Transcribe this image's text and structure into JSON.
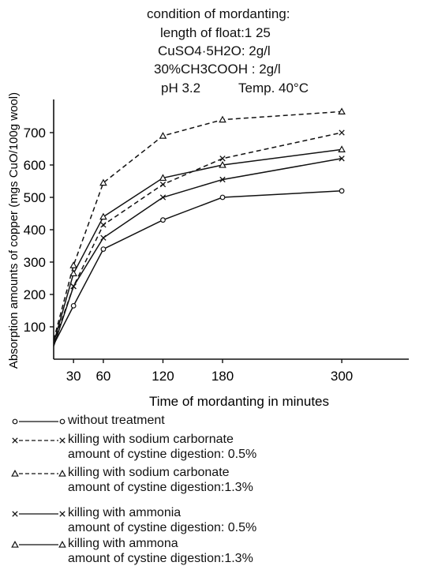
{
  "header": {
    "title": "condition of mordanting:",
    "line1": "length of float:1 25",
    "line2": "CuSO4·5H2O: 2g/l",
    "line3": "30%CH3COOH : 2g/l",
    "line4_ph": "pH  3.2",
    "line4_temp": "Temp. 40°C"
  },
  "chart_data": {
    "type": "line",
    "xlabel": "Time of mordanting in minutes",
    "ylabel": "Absorption amounts of copper (mgs CuO/100g wool)",
    "x_ticks": [
      30,
      60,
      120,
      180,
      300
    ],
    "y_ticks": [
      100,
      200,
      300,
      400,
      500,
      600,
      700
    ],
    "xlim": [
      0,
      330
    ],
    "ylim": [
      0,
      800
    ],
    "grid": false,
    "legend_position": "bottom",
    "series": [
      {
        "key": "s1",
        "name": "without treatment",
        "marker": "o",
        "line": "solid",
        "x": [
          10,
          30,
          60,
          120,
          180,
          300
        ],
        "y": [
          45,
          165,
          340,
          430,
          500,
          520
        ]
      },
      {
        "key": "s2",
        "name": "killing with sodium carbornate",
        "subname": "amount of cystine digestion: 0.5%",
        "marker": "x",
        "line": "dashed",
        "x": [
          10,
          30,
          60,
          120,
          180,
          300
        ],
        "y": [
          50,
          225,
          415,
          540,
          620,
          700
        ]
      },
      {
        "key": "s3",
        "name": "killing with sodium carbonate",
        "subname": "amount of cystine digestion:1.3%",
        "marker": "triangle",
        "line": "dashed",
        "x": [
          10,
          30,
          60,
          120,
          180,
          300
        ],
        "y": [
          60,
          290,
          545,
          690,
          740,
          765
        ]
      },
      {
        "key": "s4",
        "name": "killing with ammonia",
        "subname": "amount of cystine digestion: 0.5%",
        "marker": "x",
        "line": "solid",
        "x": [
          10,
          30,
          60,
          120,
          180,
          300
        ],
        "y": [
          40,
          225,
          375,
          500,
          555,
          620
        ]
      },
      {
        "key": "s5",
        "name": "killing with ammona",
        "subname": "amount of cystine digestion:1.3%",
        "marker": "triangle",
        "line": "solid",
        "x": [
          10,
          30,
          60,
          120,
          180,
          300
        ],
        "y": [
          50,
          265,
          440,
          560,
          600,
          648
        ]
      }
    ]
  }
}
